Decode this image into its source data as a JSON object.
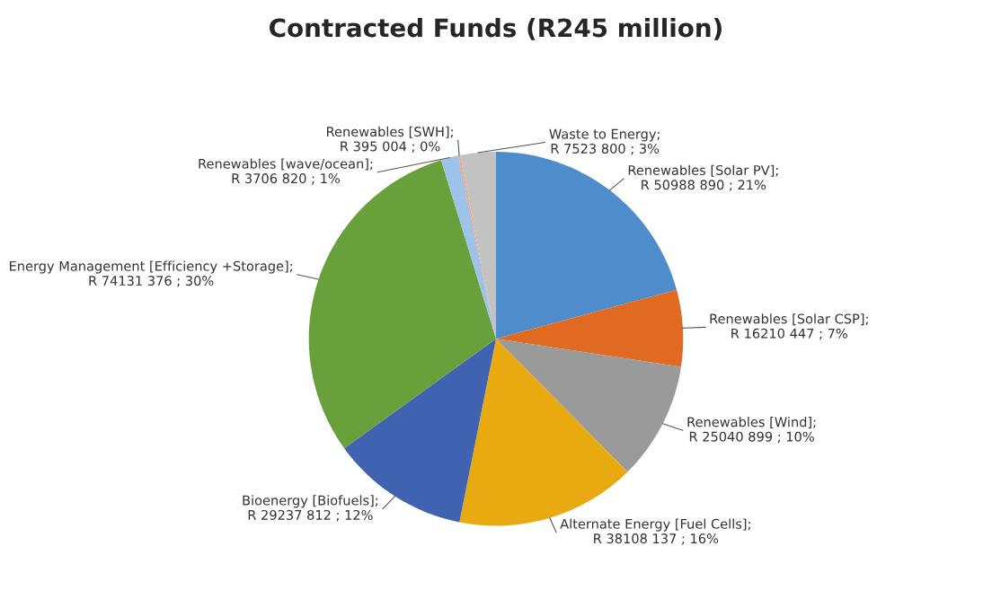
{
  "chart_data": {
    "type": "pie",
    "title": "Contracted Funds (R245 million)",
    "categories": [
      "Renewables [Solar PV]",
      "Renewables [Solar CSP]",
      "Renewables [Wind]",
      "Alternate Energy [Fuel Cells]",
      "Bioenergy [Biofuels]",
      "Energy Management [Efficiency +Storage]",
      "Renewables [wave/ocean]",
      "Renewables [SWH]",
      "Waste to Energy"
    ],
    "values": [
      50988890,
      16210447,
      25040899,
      38108137,
      29237812,
      74131376,
      3706820,
      395004,
      7523800
    ],
    "value_labels": [
      "; R 50988 890 ; 21%",
      "; R 16210 447 ; 7%",
      "; R 25040 899 ; 10%",
      "; R 38108 137 ; 16%",
      "; R 29237 812 ; 12%",
      "; R 74131 376 ; 30%",
      "; R 3706 820 ; 1%",
      "; R 395 004 ; 0%",
      "; R 7523 800 ; 3%"
    ],
    "colors": [
      "#4f8ccb",
      "#e06a22",
      "#9a9a9a",
      "#e8aa10",
      "#3f63b0",
      "#68a03c",
      "#9ec2e8",
      "#f2a27e",
      "#c2c2c2"
    ]
  }
}
